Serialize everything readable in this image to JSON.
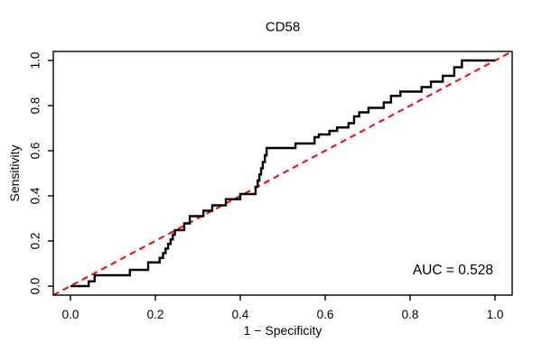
{
  "title": "CD58",
  "annotation": {
    "auc_label": "AUC = 0.528"
  },
  "colors": {
    "roc_curve": "#000000",
    "reference_line": "#ff0000",
    "axis": "#000000",
    "background": "#ffffff"
  },
  "chart_data": {
    "type": "line",
    "subtype": "roc-step-curve",
    "title": "CD58",
    "xlabel": "1 − Specificity",
    "ylabel": "Sensitivity",
    "xlim": [
      0,
      1
    ],
    "ylim": [
      0,
      1
    ],
    "x_ticks": [
      0.0,
      0.2,
      0.4,
      0.6,
      0.8,
      1.0
    ],
    "y_ticks": [
      0.0,
      0.2,
      0.4,
      0.6,
      0.8,
      1.0
    ],
    "x_tick_labels": [
      "0.0",
      "0.2",
      "0.4",
      "0.6",
      "0.8",
      "1.0"
    ],
    "y_tick_labels": [
      "0.0",
      "0.2",
      "0.4",
      "0.6",
      "0.8",
      "1.0"
    ],
    "grid": false,
    "legend": "none",
    "auc": 0.528,
    "series": [
      {
        "name": "ROC curve (CD58)",
        "color": "#000000",
        "style": "solid",
        "points": [
          [
            0.0,
            0.0
          ],
          [
            0.043,
            0.0
          ],
          [
            0.043,
            0.021
          ],
          [
            0.057,
            0.021
          ],
          [
            0.057,
            0.048
          ],
          [
            0.14,
            0.048
          ],
          [
            0.14,
            0.072
          ],
          [
            0.183,
            0.072
          ],
          [
            0.183,
            0.105
          ],
          [
            0.21,
            0.105
          ],
          [
            0.21,
            0.125
          ],
          [
            0.218,
            0.125
          ],
          [
            0.218,
            0.146
          ],
          [
            0.224,
            0.146
          ],
          [
            0.224,
            0.166
          ],
          [
            0.23,
            0.166
          ],
          [
            0.23,
            0.187
          ],
          [
            0.236,
            0.187
          ],
          [
            0.236,
            0.207
          ],
          [
            0.241,
            0.207
          ],
          [
            0.241,
            0.228
          ],
          [
            0.246,
            0.228
          ],
          [
            0.246,
            0.248
          ],
          [
            0.268,
            0.248
          ],
          [
            0.268,
            0.278
          ],
          [
            0.281,
            0.278
          ],
          [
            0.281,
            0.31
          ],
          [
            0.313,
            0.31
          ],
          [
            0.313,
            0.334
          ],
          [
            0.334,
            0.334
          ],
          [
            0.334,
            0.358
          ],
          [
            0.366,
            0.358
          ],
          [
            0.366,
            0.385
          ],
          [
            0.4,
            0.385
          ],
          [
            0.4,
            0.408
          ],
          [
            0.436,
            0.408
          ],
          [
            0.436,
            0.44
          ],
          [
            0.441,
            0.44
          ],
          [
            0.441,
            0.468
          ],
          [
            0.445,
            0.468
          ],
          [
            0.445,
            0.495
          ],
          [
            0.449,
            0.495
          ],
          [
            0.449,
            0.522
          ],
          [
            0.453,
            0.522
          ],
          [
            0.453,
            0.55
          ],
          [
            0.458,
            0.55
          ],
          [
            0.458,
            0.58
          ],
          [
            0.462,
            0.58
          ],
          [
            0.462,
            0.612
          ],
          [
            0.53,
            0.612
          ],
          [
            0.53,
            0.632
          ],
          [
            0.575,
            0.632
          ],
          [
            0.575,
            0.66
          ],
          [
            0.585,
            0.66
          ],
          [
            0.585,
            0.672
          ],
          [
            0.61,
            0.672
          ],
          [
            0.61,
            0.688
          ],
          [
            0.628,
            0.688
          ],
          [
            0.628,
            0.703
          ],
          [
            0.655,
            0.703
          ],
          [
            0.655,
            0.722
          ],
          [
            0.668,
            0.722
          ],
          [
            0.668,
            0.752
          ],
          [
            0.68,
            0.752
          ],
          [
            0.68,
            0.77
          ],
          [
            0.702,
            0.77
          ],
          [
            0.702,
            0.79
          ],
          [
            0.738,
            0.79
          ],
          [
            0.738,
            0.814
          ],
          [
            0.755,
            0.814
          ],
          [
            0.755,
            0.843
          ],
          [
            0.777,
            0.843
          ],
          [
            0.777,
            0.862
          ],
          [
            0.827,
            0.862
          ],
          [
            0.827,
            0.882
          ],
          [
            0.849,
            0.882
          ],
          [
            0.849,
            0.906
          ],
          [
            0.877,
            0.906
          ],
          [
            0.877,
            0.932
          ],
          [
            0.904,
            0.932
          ],
          [
            0.904,
            0.97
          ],
          [
            0.922,
            0.97
          ],
          [
            0.922,
            1.0
          ],
          [
            1.0,
            1.0
          ]
        ]
      },
      {
        "name": "chance reference diagonal",
        "color": "#ff0000",
        "style": "dashed",
        "points": [
          [
            0,
            0
          ],
          [
            1,
            1
          ]
        ]
      }
    ]
  }
}
